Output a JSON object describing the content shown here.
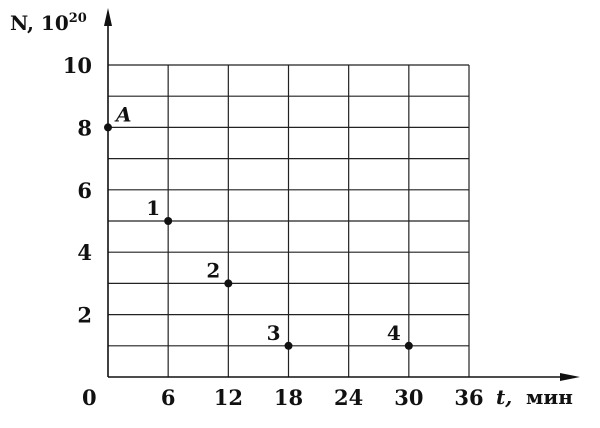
{
  "chart_data": {
    "type": "scatter",
    "ylabel": "N, 10",
    "ylabel_exponent": "20",
    "xlabel": "t,",
    "xunit": "мин",
    "origin_label": "0",
    "xlim": [
      0,
      36
    ],
    "ylim": [
      0,
      10
    ],
    "x_ticks": [
      6,
      12,
      18,
      24,
      30,
      36
    ],
    "y_ticks": [
      2,
      4,
      6,
      8,
      10
    ],
    "grid": true,
    "grid_x_step": 6,
    "grid_y_step": 1,
    "points": [
      {
        "label": "A",
        "x": 0,
        "y": 8
      },
      {
        "label": "1",
        "x": 6,
        "y": 5
      },
      {
        "label": "2",
        "x": 12,
        "y": 3
      },
      {
        "label": "3",
        "x": 18,
        "y": 1
      },
      {
        "label": "4",
        "x": 30,
        "y": 1
      }
    ],
    "color": "#111111"
  }
}
